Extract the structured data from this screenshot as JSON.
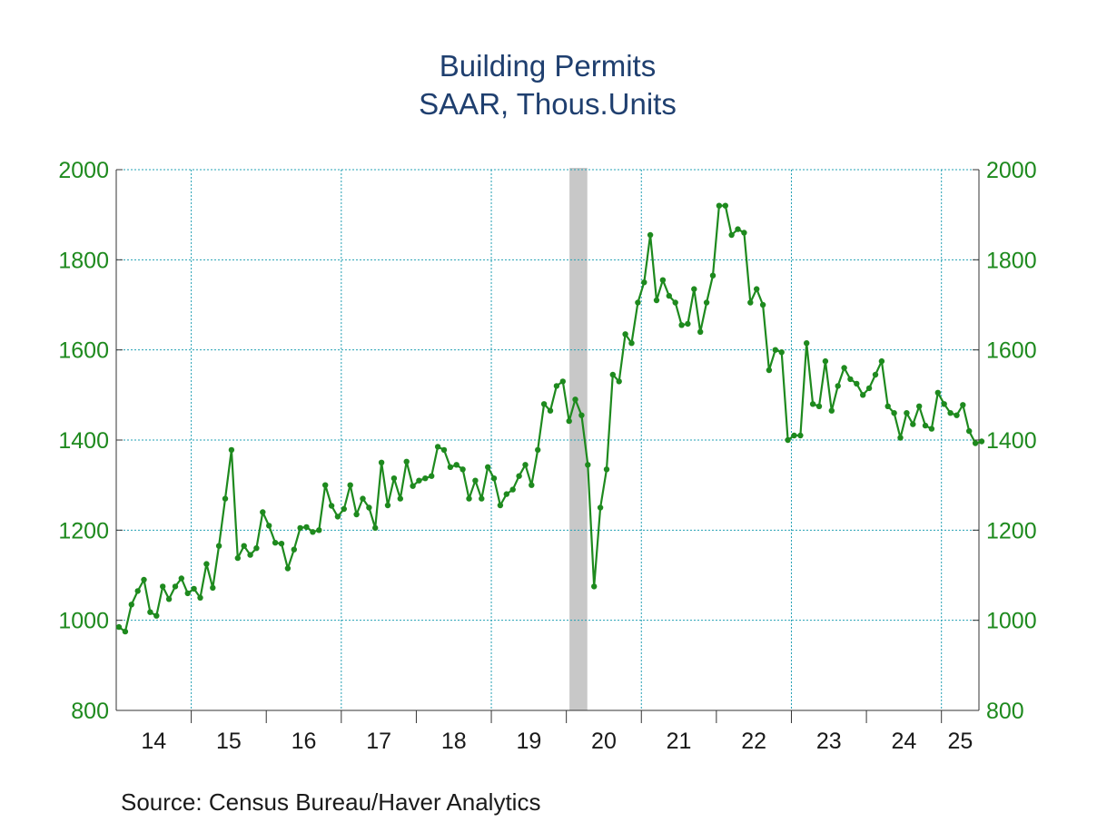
{
  "chart_data": {
    "type": "line",
    "title": "Building Permits",
    "subtitle": "SAAR, Thous.Units",
    "source": "Source:  Census Bureau/Haver Analytics",
    "ylim": [
      800,
      2000
    ],
    "yticks": [
      800,
      1000,
      1200,
      1400,
      1600,
      1800,
      2000
    ],
    "ytick_labels": [
      "800",
      "1000",
      "1200",
      "1400",
      "1600",
      "1800",
      "2000"
    ],
    "right_axis": true,
    "xtick_labels": [
      "14",
      "15",
      "16",
      "17",
      "18",
      "19",
      "20",
      "21",
      "22",
      "23",
      "24",
      "25"
    ],
    "x_start": "2014-01",
    "x_end": "2025-06",
    "grid": true,
    "colors": {
      "series": "#1e8a1e",
      "axis_text": "#1e8a1e",
      "grid": "#22a0b4",
      "title": "#1f3f6f",
      "recession": "#c8c8c8"
    },
    "recession": {
      "start": "2020-02",
      "end": "2020-04"
    },
    "series": [
      {
        "values": [
          985,
          975,
          1035,
          1065,
          1090,
          1018,
          1010,
          1075,
          1047,
          1075,
          1093,
          1060,
          1070,
          1050,
          1125,
          1072,
          1165,
          1270,
          1378,
          1138,
          1165,
          1145,
          1160,
          1240,
          1210,
          1172,
          1170,
          1115,
          1157,
          1205,
          1207,
          1196,
          1200,
          1300,
          1254,
          1230,
          1247,
          1300,
          1235,
          1270,
          1250,
          1205,
          1350,
          1255,
          1315,
          1270,
          1352,
          1298,
          1310,
          1315,
          1320,
          1385,
          1378,
          1340,
          1345,
          1335,
          1270,
          1310,
          1270,
          1340,
          1315,
          1255,
          1280,
          1290,
          1320,
          1345,
          1300,
          1378,
          1480,
          1465,
          1520,
          1530,
          1442,
          1490,
          1455,
          1345,
          1075,
          1250,
          1335,
          1545,
          1530,
          1635,
          1615,
          1705,
          1750,
          1855,
          1710,
          1755,
          1720,
          1705,
          1655,
          1658,
          1735,
          1640,
          1705,
          1765,
          1920,
          1920,
          1855,
          1868,
          1860,
          1705,
          1735,
          1700,
          1555,
          1600,
          1595,
          1400,
          1410,
          1410,
          1615,
          1480,
          1475,
          1575,
          1465,
          1520,
          1560,
          1535,
          1525,
          1500,
          1515,
          1545,
          1575,
          1475,
          1460,
          1405,
          1460,
          1435,
          1475,
          1432,
          1425,
          1505,
          1480,
          1460,
          1455,
          1478,
          1420,
          1393,
          1397
        ]
      }
    ]
  }
}
